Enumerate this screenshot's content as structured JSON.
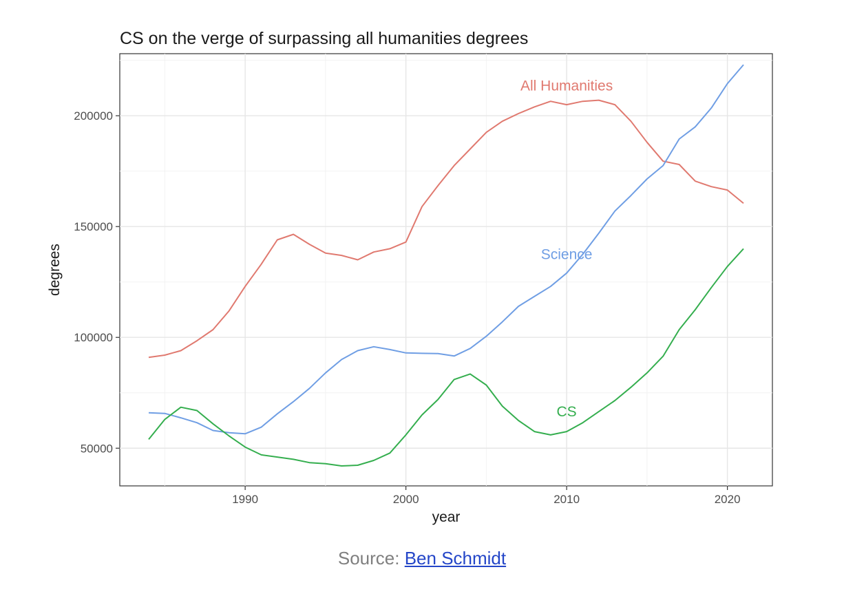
{
  "chart_data": {
    "type": "line",
    "title": "CS on the verge of surpassing all humanities degrees",
    "xlabel": "year",
    "ylabel": "degrees",
    "xlim": [
      1983.2,
      1981.2
    ],
    "ylim": [
      33000,
      228000
    ],
    "x_ticks": [
      1990,
      2000,
      2010,
      2020
    ],
    "y_ticks": [
      50000,
      100000,
      150000,
      200000
    ],
    "grid": true,
    "legend": "direct labels on lines",
    "x": [
      1984,
      1985,
      1986,
      1987,
      1988,
      1989,
      1990,
      1991,
      1992,
      1993,
      1994,
      1995,
      1996,
      1997,
      1998,
      1999,
      2000,
      2001,
      2002,
      2003,
      2004,
      2005,
      2006,
      2007,
      2008,
      2009,
      2010,
      2011,
      2012,
      2013,
      2014,
      2015,
      2016,
      2017,
      2018,
      2019,
      2020,
      2021
    ],
    "series": [
      {
        "name": "All Humanities",
        "color": "#e0796f",
        "label_at": [
          2010.0,
          213500
        ],
        "values": [
          91000,
          92000,
          94000,
          98500,
          103500,
          112000,
          123000,
          133000,
          144000,
          146500,
          142000,
          138000,
          137000,
          135000,
          138500,
          140000,
          143000,
          159000,
          168500,
          177500,
          185000,
          192500,
          197500,
          201000,
          204000,
          206500,
          205000,
          206500,
          207000,
          205000,
          197500,
          188000,
          179500,
          178000,
          170500,
          168000,
          166500,
          160500
        ]
      },
      {
        "name": "Science",
        "color": "#6f9ee4",
        "label_at": [
          2010.0,
          137500
        ],
        "values": [
          66000,
          65700,
          63700,
          61500,
          58000,
          57000,
          56500,
          59500,
          65500,
          71000,
          77000,
          84000,
          90000,
          94000,
          95800,
          94500,
          93000,
          92800,
          92700,
          91600,
          95000,
          100500,
          107000,
          114000,
          118500,
          123000,
          129000,
          137500,
          147000,
          157000,
          164000,
          171500,
          177500,
          189500,
          195000,
          203500,
          214500,
          223000
        ]
      },
      {
        "name": "CS",
        "color": "#34ae4e",
        "label_at": [
          2010.0,
          66500
        ],
        "values": [
          54000,
          63000,
          68500,
          67000,
          61000,
          55500,
          50500,
          47000,
          46000,
          45000,
          43500,
          43000,
          42000,
          42300,
          44500,
          47800,
          56000,
          65000,
          72000,
          81000,
          83500,
          78500,
          69000,
          62500,
          57500,
          56000,
          57500,
          61500,
          66500,
          71500,
          77500,
          84000,
          91500,
          103500,
          112500,
          122500,
          132000,
          140000
        ]
      }
    ]
  },
  "caption": {
    "prefix": "Source: ",
    "link_text": "Ben Schmidt"
  }
}
